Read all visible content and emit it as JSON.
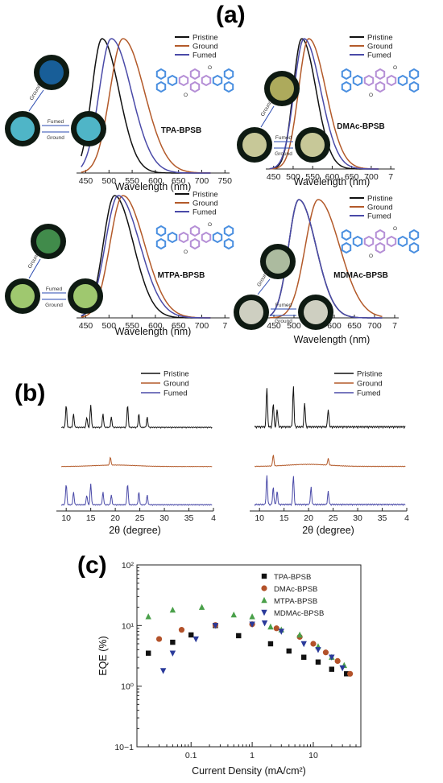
{
  "figure_labels": {
    "a": "(a)",
    "b": "(b)",
    "c": "(c)"
  },
  "colors": {
    "pristine": "#111111",
    "ground": "#b35a2a",
    "fumed": "#4a4aa8",
    "tpa": "#111111",
    "dmac": "#b3522a",
    "mtpa": "#4aa04a",
    "mdmac": "#2a3a9a"
  },
  "panel_a": {
    "xlabel": "Wavelength (nm)",
    "legend": [
      "Pristine",
      "Ground",
      "Fumed"
    ],
    "arrow_labels": {
      "ground": "Ground",
      "fumed": "Fumed"
    },
    "icons": {
      "molecule": "molecule-structure-icon",
      "photo": "fluorescence-photo-icon"
    },
    "subplots": [
      {
        "name": "TPA-BPSB",
        "xticks": [
          "450",
          "500",
          "550",
          "600",
          "650",
          "700",
          "750"
        ],
        "peaks": [
          485,
          530,
          505
        ],
        "widths": [
          38,
          48,
          45
        ]
      },
      {
        "name": "DMAc-BPSB",
        "xticks": [
          "450",
          "500",
          "550",
          "600",
          "650",
          "700",
          "7"
        ],
        "peaks": [
          522,
          540,
          528
        ],
        "widths": [
          38,
          45,
          44
        ]
      },
      {
        "name": "MTPA-BPSB",
        "xticks": [
          "450",
          "500",
          "550",
          "600",
          "650",
          "700",
          "7"
        ],
        "peaks": [
          512,
          530,
          520
        ],
        "widths": [
          42,
          48,
          48
        ]
      },
      {
        "name": "MDMAc-BPSB",
        "xticks": [
          "450",
          "500",
          "550",
          "600",
          "650",
          "700",
          "7"
        ],
        "peaks": [
          512,
          560,
          512
        ],
        "widths": [
          44,
          55,
          44
        ]
      }
    ]
  },
  "panel_b": {
    "xlabel": "2θ (degree)",
    "legend": [
      "Pristine",
      "Ground",
      "Fumed"
    ],
    "xticks": [
      "10",
      "15",
      "20",
      "25",
      "30",
      "35",
      "4"
    ]
  },
  "chart_data": [
    {
      "type": "line",
      "panel": "(a) TPA-BPSB",
      "xlabel": "Wavelength (nm)",
      "xlim": [
        430,
        760
      ],
      "series": [
        {
          "name": "Pristine",
          "peak_nm": 485
        },
        {
          "name": "Ground",
          "peak_nm": 530
        },
        {
          "name": "Fumed",
          "peak_nm": 505
        }
      ]
    },
    {
      "type": "line",
      "panel": "(a) DMAc-BPSB",
      "xlabel": "Wavelength (nm)",
      "xlim": [
        430,
        760
      ],
      "series": [
        {
          "name": "Pristine",
          "peak_nm": 522
        },
        {
          "name": "Ground",
          "peak_nm": 540
        },
        {
          "name": "Fumed",
          "peak_nm": 528
        }
      ]
    },
    {
      "type": "line",
      "panel": "(a) MTPA-BPSB",
      "xlabel": "Wavelength (nm)",
      "xlim": [
        430,
        760
      ],
      "series": [
        {
          "name": "Pristine",
          "peak_nm": 512
        },
        {
          "name": "Ground",
          "peak_nm": 530
        },
        {
          "name": "Fumed",
          "peak_nm": 520
        }
      ]
    },
    {
      "type": "line",
      "panel": "(a) MDMAc-BPSB",
      "xlabel": "Wavelength (nm)",
      "xlim": [
        430,
        760
      ],
      "series": [
        {
          "name": "Pristine",
          "peak_nm": 512
        },
        {
          "name": "Ground",
          "peak_nm": 560
        },
        {
          "name": "Fumed",
          "peak_nm": 512
        }
      ]
    },
    {
      "type": "line",
      "panel": "(b) left",
      "xlabel": "2θ (degree)",
      "xlim": [
        8,
        40
      ],
      "series": [
        {
          "name": "Pristine",
          "major_peaks_deg": [
            10.0,
            11.5,
            14.2,
            15.0,
            17.5,
            19.2,
            22.5,
            24.8,
            26.5
          ]
        },
        {
          "name": "Ground",
          "major_peaks_deg": [
            19.0
          ]
        },
        {
          "name": "Fumed",
          "major_peaks_deg": [
            10.0,
            11.5,
            14.2,
            15.0,
            17.5,
            19.2,
            22.5,
            24.8,
            26.5
          ]
        }
      ]
    },
    {
      "type": "line",
      "panel": "(b) right",
      "xlabel": "2θ (degree)",
      "xlim": [
        8,
        40
      ],
      "series": [
        {
          "name": "Pristine",
          "major_peaks_deg": [
            11.5,
            12.8,
            13.6,
            16.9,
            19.2,
            24.0
          ]
        },
        {
          "name": "Ground",
          "major_peaks_deg": [
            12.8,
            24.0
          ]
        },
        {
          "name": "Fumed",
          "major_peaks_deg": [
            11.5,
            12.8,
            13.6,
            16.9,
            20.5,
            24.0
          ]
        }
      ]
    },
    {
      "type": "scatter",
      "panel": "(c)",
      "xlabel": "Current Density (mA/cm²)",
      "ylabel": "EQE (%)",
      "xscale": "log",
      "yscale": "log",
      "xlim": [
        0.013,
        60
      ],
      "ylim": [
        0.1,
        100
      ],
      "xticks": [
        "0.1",
        "1",
        "10"
      ],
      "yticks": [
        "10−1",
        "10⁰",
        "10¹",
        "10²"
      ],
      "legend_position": "top-right",
      "series": [
        {
          "name": "TPA-BPSB",
          "marker": "square",
          "points": [
            [
              0.02,
              3.5
            ],
            [
              0.05,
              5.3
            ],
            [
              0.1,
              7.0
            ],
            [
              0.25,
              10.0
            ],
            [
              0.6,
              6.8
            ],
            [
              2,
              5.0
            ],
            [
              4,
              3.8
            ],
            [
              7,
              3.0
            ],
            [
              12,
              2.5
            ],
            [
              20,
              1.9
            ],
            [
              35,
              1.6
            ]
          ]
        },
        {
          "name": "DMAc-BPSB",
          "marker": "circle",
          "points": [
            [
              0.03,
              6.0
            ],
            [
              0.07,
              8.5
            ],
            [
              0.25,
              10.2
            ],
            [
              1.0,
              10.5
            ],
            [
              2.5,
              9.0
            ],
            [
              6,
              6.5
            ],
            [
              10,
              5.0
            ],
            [
              16,
              3.6
            ],
            [
              25,
              2.6
            ],
            [
              40,
              1.6
            ]
          ]
        },
        {
          "name": "MTPA-BPSB",
          "marker": "triangle-up",
          "points": [
            [
              0.02,
              14.0
            ],
            [
              0.05,
              18.0
            ],
            [
              0.15,
              20.0
            ],
            [
              0.5,
              15.0
            ],
            [
              1.0,
              14.0
            ],
            [
              2.0,
              9.5
            ],
            [
              3,
              8.5
            ],
            [
              6,
              7.0
            ],
            [
              12,
              4.5
            ],
            [
              20,
              3.0
            ],
            [
              32,
              2.2
            ]
          ]
        },
        {
          "name": "MDMAc-BPSB",
          "marker": "triangle-down",
          "points": [
            [
              0.035,
              1.8
            ],
            [
              0.05,
              3.5
            ],
            [
              0.12,
              6.0
            ],
            [
              0.25,
              10.0
            ],
            [
              1.0,
              10.5
            ],
            [
              1.6,
              11.0
            ],
            [
              3,
              8.0
            ],
            [
              7,
              5.0
            ],
            [
              12,
              4.0
            ],
            [
              20,
              3.0
            ],
            [
              30,
              2.0
            ]
          ]
        }
      ]
    }
  ]
}
